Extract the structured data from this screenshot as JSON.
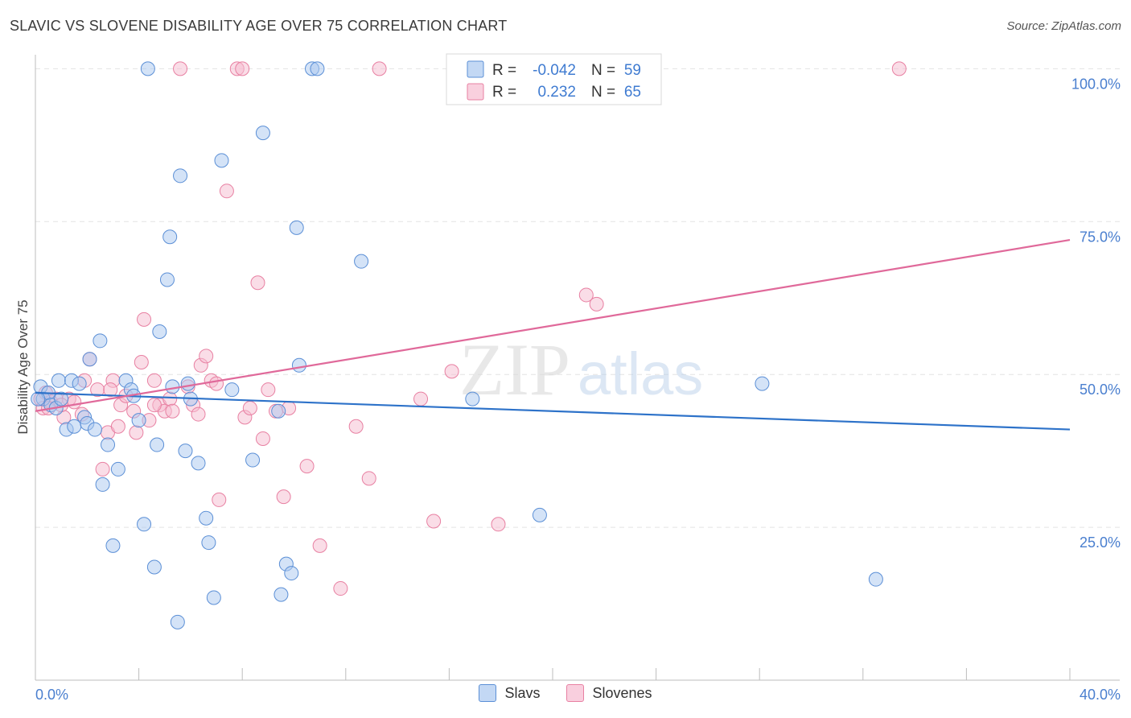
{
  "header": {
    "title": "SLAVIC VS SLOVENE DISABILITY AGE OVER 75 CORRELATION CHART",
    "source": "Source: ZipAtlas.com"
  },
  "watermark": {
    "zip": "ZIP",
    "atlas": "atlas"
  },
  "colors": {
    "blue_fill": "#a9c8ef",
    "blue_stroke": "#5b8fd6",
    "blue_line": "#2d72c9",
    "pink_fill": "#f6bcd0",
    "pink_stroke": "#e880a2",
    "pink_line": "#e0699a",
    "axis_label": "#4a7fcf",
    "grid": "#e3e3e3"
  },
  "stats_legend": {
    "rows": [
      {
        "r_label": "R =",
        "r_value": "-0.042",
        "n_label": "N =",
        "n_value": "59"
      },
      {
        "r_label": "R =",
        "r_value": "0.232",
        "n_label": "N =",
        "n_value": "65"
      }
    ]
  },
  "bottom_legend": {
    "items": [
      "Slavs",
      "Slovenes"
    ]
  },
  "chart_data": {
    "type": "scatter",
    "title": "SLAVIC VS SLOVENE DISABILITY AGE OVER 75 CORRELATION CHART",
    "xlabel": "",
    "ylabel": "Disability Age Over 75",
    "xlim": [
      0,
      40
    ],
    "ylim": [
      0,
      104
    ],
    "x_tick_labels": [
      "0.0%",
      "40.0%"
    ],
    "y_ticks": [
      25,
      50,
      75,
      100
    ],
    "y_tick_labels": [
      "25.0%",
      "50.0%",
      "75.0%",
      "100.0%"
    ],
    "series": [
      {
        "name": "Slavs",
        "r": -0.042,
        "n": 59,
        "trend": {
          "x": [
            0,
            40
          ],
          "y": [
            47,
            41
          ]
        },
        "points": [
          [
            0.2,
            48
          ],
          [
            0.3,
            46
          ],
          [
            0.5,
            47
          ],
          [
            0.6,
            45
          ],
          [
            0.8,
            44.5
          ],
          [
            0.9,
            49
          ],
          [
            1.0,
            46
          ],
          [
            1.2,
            41
          ],
          [
            1.4,
            49
          ],
          [
            1.5,
            41.5
          ],
          [
            1.7,
            48.5
          ],
          [
            1.9,
            43
          ],
          [
            2.0,
            42
          ],
          [
            2.1,
            52.5
          ],
          [
            2.3,
            41
          ],
          [
            2.5,
            55.5
          ],
          [
            2.6,
            32
          ],
          [
            2.8,
            38.5
          ],
          [
            3.0,
            22
          ],
          [
            3.2,
            34.5
          ],
          [
            3.5,
            49
          ],
          [
            3.7,
            47.5
          ],
          [
            3.8,
            46.5
          ],
          [
            4.0,
            42.5
          ],
          [
            4.2,
            25.5
          ],
          [
            4.35,
            100
          ],
          [
            4.6,
            18.5
          ],
          [
            4.7,
            38.5
          ],
          [
            4.8,
            57
          ],
          [
            5.1,
            65.5
          ],
          [
            5.2,
            72.5
          ],
          [
            5.3,
            48
          ],
          [
            5.5,
            9.5
          ],
          [
            5.6,
            82.5
          ],
          [
            5.8,
            37.5
          ],
          [
            5.9,
            48.5
          ],
          [
            6.0,
            46
          ],
          [
            6.3,
            35.5
          ],
          [
            6.6,
            26.5
          ],
          [
            6.7,
            22.5
          ],
          [
            6.9,
            13.5
          ],
          [
            7.2,
            85
          ],
          [
            7.6,
            47.5
          ],
          [
            8.4,
            36
          ],
          [
            8.8,
            89.5
          ],
          [
            9.4,
            44
          ],
          [
            9.5,
            14
          ],
          [
            9.7,
            19
          ],
          [
            9.9,
            17.5
          ],
          [
            10.1,
            74
          ],
          [
            10.2,
            51.5
          ],
          [
            10.7,
            100
          ],
          [
            10.9,
            100
          ],
          [
            12.6,
            68.5
          ],
          [
            16.9,
            46
          ],
          [
            19.5,
            27
          ],
          [
            28.1,
            48.5
          ],
          [
            32.5,
            16.5
          ],
          [
            0.1,
            46
          ]
        ]
      },
      {
        "name": "Slovenes",
        "r": 0.232,
        "n": 65,
        "trend": {
          "x": [
            0,
            40
          ],
          "y": [
            44,
            72
          ]
        },
        "points": [
          [
            0.2,
            46
          ],
          [
            0.3,
            44.5
          ],
          [
            0.4,
            47
          ],
          [
            0.6,
            45.5
          ],
          [
            0.8,
            46
          ],
          [
            1.1,
            43
          ],
          [
            1.3,
            46
          ],
          [
            1.5,
            45.5
          ],
          [
            1.8,
            43.5
          ],
          [
            1.9,
            49
          ],
          [
            2.1,
            52.5
          ],
          [
            2.4,
            47.5
          ],
          [
            2.6,
            34.5
          ],
          [
            2.8,
            40.5
          ],
          [
            3.0,
            49
          ],
          [
            3.2,
            41.5
          ],
          [
            3.3,
            45
          ],
          [
            3.5,
            46.5
          ],
          [
            3.8,
            44
          ],
          [
            3.9,
            40.5
          ],
          [
            4.1,
            52
          ],
          [
            4.2,
            59
          ],
          [
            4.4,
            42.5
          ],
          [
            4.6,
            49
          ],
          [
            4.8,
            45
          ],
          [
            5.0,
            44
          ],
          [
            5.2,
            46
          ],
          [
            5.3,
            44
          ],
          [
            5.6,
            100
          ],
          [
            5.9,
            48
          ],
          [
            6.1,
            45
          ],
          [
            6.3,
            43.5
          ],
          [
            6.4,
            51.5
          ],
          [
            6.6,
            53
          ],
          [
            6.8,
            49
          ],
          [
            7.1,
            29.5
          ],
          [
            7.4,
            80
          ],
          [
            7.8,
            100
          ],
          [
            8.0,
            100
          ],
          [
            8.1,
            43
          ],
          [
            8.3,
            44.5
          ],
          [
            8.6,
            65
          ],
          [
            8.8,
            39.5
          ],
          [
            9.0,
            47.5
          ],
          [
            9.3,
            44
          ],
          [
            9.6,
            30
          ],
          [
            9.8,
            44.5
          ],
          [
            10.5,
            35
          ],
          [
            11.0,
            22
          ],
          [
            11.8,
            15
          ],
          [
            12.4,
            41.5
          ],
          [
            12.9,
            33
          ],
          [
            13.3,
            100
          ],
          [
            14.9,
            46
          ],
          [
            15.4,
            26
          ],
          [
            16.1,
            50.5
          ],
          [
            17.9,
            25.5
          ],
          [
            21.3,
            63
          ],
          [
            21.7,
            61.5
          ],
          [
            33.4,
            100
          ],
          [
            1.0,
            45
          ],
          [
            2.9,
            47.5
          ],
          [
            4.6,
            45
          ],
          [
            7.0,
            48.5
          ],
          [
            0.5,
            44.5
          ]
        ]
      }
    ]
  }
}
